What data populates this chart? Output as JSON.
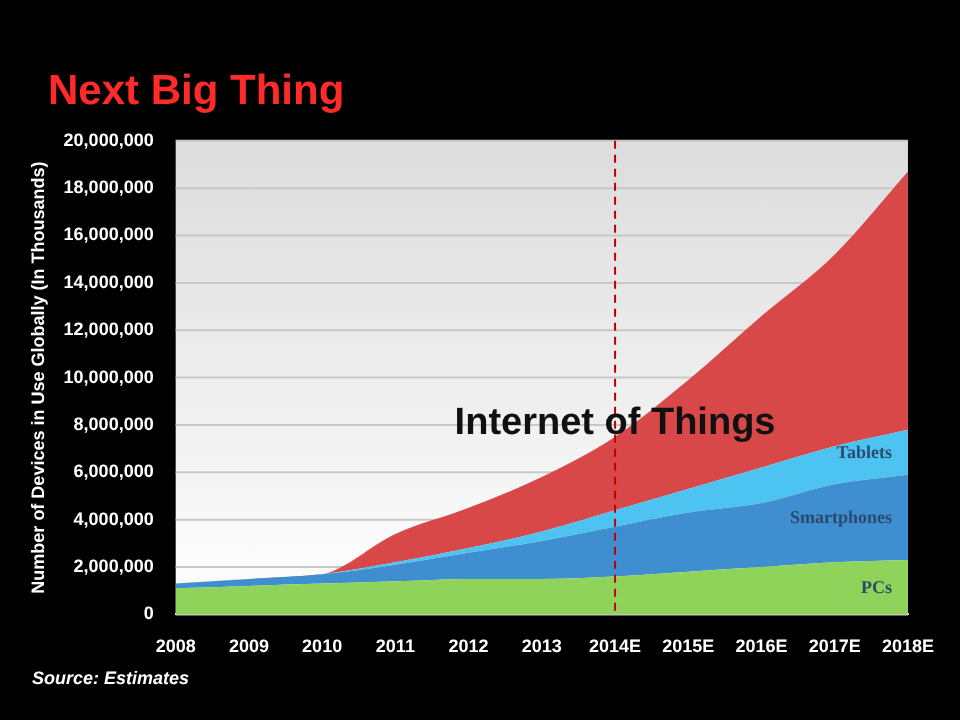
{
  "chart_data": {
    "type": "area",
    "title": "Next Big Thing",
    "ylabel": "Number of Devices in Use Globally (In Thousands)",
    "categories": [
      "2008",
      "2009",
      "2010",
      "2011",
      "2012",
      "2013",
      "2014E",
      "2015E",
      "2016E",
      "2017E",
      "2018E"
    ],
    "stacked": true,
    "series": [
      {
        "name": "PCs",
        "color": "#8fd35a",
        "values": [
          1100000,
          1200000,
          1300000,
          1400000,
          1500000,
          1500000,
          1600000,
          1800000,
          2000000,
          2200000,
          2300000
        ]
      },
      {
        "name": "Smartphones",
        "color": "#3f8fd0",
        "values": [
          200000,
          300000,
          400000,
          700000,
          1100000,
          1600000,
          2100000,
          2500000,
          2700000,
          3300000,
          3600000
        ]
      },
      {
        "name": "Tablets",
        "color": "#4cc3f0",
        "values": [
          0,
          0,
          0,
          100000,
          200000,
          400000,
          700000,
          1000000,
          1500000,
          1600000,
          1900000
        ]
      },
      {
        "name": "Internet of Things",
        "color": "#d94848",
        "values": [
          0,
          0,
          0,
          1200000,
          1700000,
          2300000,
          3100000,
          4600000,
          6400000,
          8100000,
          10900000
        ]
      }
    ],
    "ylim": [
      0,
      20000000
    ],
    "yticks": [
      0,
      {
        "value": 2000000,
        "label": "2,000,000"
      },
      {
        "value": 4000000,
        "label": "4,000,000"
      },
      {
        "value": 6000000,
        "label": "6,000,000"
      },
      {
        "value": 8000000,
        "label": "8,000,000"
      },
      {
        "value": 10000000,
        "label": "10,000,000"
      },
      {
        "value": 12000000,
        "label": "12,000,000"
      },
      {
        "value": 14000000,
        "label": "14,000,000"
      },
      {
        "value": 16000000,
        "label": "16,000,000"
      },
      {
        "value": 18000000,
        "label": "18,000,000"
      },
      {
        "value": 20000000,
        "label": "20,000,000"
      }
    ],
    "grid": "y",
    "ref_lines": [
      {
        "axis": "x",
        "value": "2014E",
        "color": "#c00000",
        "line_style": "dashed"
      }
    ],
    "annotations": [
      "Source: Estimates"
    ]
  }
}
